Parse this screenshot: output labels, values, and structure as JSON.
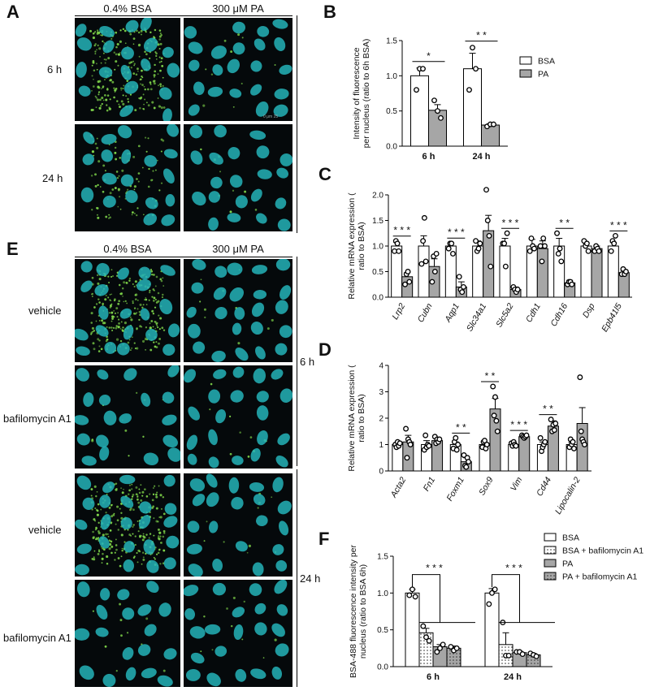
{
  "colors": {
    "nucleus": "#25b3b8",
    "puncta": "#7fd64a",
    "bg": "#05090b",
    "gray_bar": "#a6a6a6",
    "white_bar": "#ffffff"
  },
  "panelA": {
    "letter": "A",
    "col_headers": [
      "0.4% BSA",
      "300 μM PA"
    ],
    "row_labels": [
      "6 h",
      "24 h"
    ],
    "scale_bar": "0   μm   25"
  },
  "panelE": {
    "letter": "E",
    "col_headers": [
      "0.4% BSA",
      "300 μM PA"
    ],
    "row_labels": [
      "vehicle",
      "bafilomycin A1",
      "vehicle",
      "bafilomycin A1"
    ],
    "time_labels": [
      "6 h",
      "24 h"
    ]
  },
  "chart_data": [
    {
      "panel": "B",
      "type": "bar",
      "categories": [
        "6 h",
        "24 h"
      ],
      "series": [
        {
          "name": "BSA",
          "values": [
            1.0,
            1.1
          ],
          "errors": [
            0.11,
            0.22
          ],
          "points": [
            [
              0.8,
              1.1,
              1.1
            ],
            [
              0.8,
              1.4,
              1.1
            ]
          ]
        },
        {
          "name": "PA",
          "values": [
            0.51,
            0.3
          ],
          "errors": [
            0.08,
            0.02
          ],
          "points": [
            [
              0.65,
              0.5,
              0.4
            ],
            [
              0.28,
              0.31,
              0.31
            ]
          ]
        }
      ],
      "ylabel": "Intensity of fluorescence per nucleus (ratio to 6h BSA)",
      "ylim": [
        0,
        1.5
      ],
      "yticks": [
        "0.0",
        "0.5",
        "1.0",
        "1.5"
      ],
      "significance": [
        "*",
        "* *"
      ],
      "legend": "right"
    },
    {
      "panel": "C",
      "type": "bar",
      "categories": [
        "Lrp2",
        "Cubn",
        "Aqp1",
        "Slc34a1",
        "Slc5a2",
        "Cdh1",
        "Cdh16",
        "Dsp",
        "Epb41l5"
      ],
      "series": [
        {
          "name": "BSA",
          "values": [
            1.0,
            1.0,
            1.0,
            1.0,
            1.0,
            1.0,
            1.0,
            1.0,
            1.0
          ],
          "errors": [
            0.07,
            0.2,
            0.06,
            0.1,
            0.15,
            0.13,
            0.15,
            0.05,
            0.07
          ],
          "points": [
            [
              0.9,
              1.1,
              1.05,
              0.9
            ],
            [
              0.65,
              1.1,
              1.55,
              0.7
            ],
            [
              0.95,
              1.05,
              1.05,
              0.85
            ],
            [
              1.1,
              0.9,
              0.95,
              1.05
            ],
            [
              1.05,
              1.05,
              0.6,
              1.25
            ],
            [
              0.9,
              1.15,
              1.0,
              0.95
            ],
            [
              1.25,
              0.85,
              0.95,
              0.7
            ],
            [
              1.1,
              1.0,
              1.05,
              0.9
            ],
            [
              0.9,
              1.1,
              1.05,
              1.2
            ]
          ]
        },
        {
          "name": "PA",
          "values": [
            0.4,
            0.6,
            0.2,
            1.3,
            0.15,
            0.95,
            0.28,
            0.95,
            0.48
          ],
          "errors": [
            0.08,
            0.15,
            0.1,
            0.3,
            0.05,
            0.15,
            0.05,
            0.05,
            0.04
          ],
          "points": [
            [
              0.25,
              0.45,
              0.5,
              0.3
            ],
            [
              0.3,
              0.8,
              0.5,
              0.85
            ],
            [
              0.4,
              0.15,
              0.1,
              0.2
            ],
            [
              2.1,
              1.5,
              1.2,
              0.6
            ],
            [
              0.2,
              0.15,
              0.1,
              0.15
            ],
            [
              1.0,
              0.7,
              1.15,
              1.0
            ],
            [
              0.25,
              0.3,
              0.3,
              0.25
            ],
            [
              0.9,
              1.0,
              0.95,
              0.9
            ],
            [
              0.45,
              0.55,
              0.45,
              0.5
            ]
          ]
        }
      ],
      "ylabel": "Relative mRNA expression (ratio to BSA)",
      "ylim": [
        0,
        2.0
      ],
      "yticks": [
        "0.0",
        "0.5",
        "1.0",
        "1.5",
        "2.0"
      ],
      "significance": [
        "* * *",
        "",
        "* * *",
        "",
        "* * *",
        "",
        "* *",
        "",
        "* * *"
      ]
    },
    {
      "panel": "D",
      "type": "bar",
      "categories": [
        "Acta2",
        "Fn1",
        "Foxm1",
        "Sox9",
        "Vim",
        "Cd44",
        "Lipocalin-2"
      ],
      "series": [
        {
          "name": "BSA",
          "values": [
            1.0,
            1.0,
            1.0,
            1.0,
            1.0,
            1.0,
            1.0
          ],
          "errors": [
            0.08,
            0.15,
            0.1,
            0.07,
            0.05,
            0.1,
            0.08
          ],
          "points": [
            [
              1.0,
              0.9,
              1.1,
              0.95,
              1.05
            ],
            [
              0.8,
              1.35,
              0.9,
              1.0,
              0.95
            ],
            [
              0.85,
              1.1,
              1.25,
              0.8,
              1.0
            ],
            [
              0.9,
              1.1,
              1.15,
              0.85,
              1.0
            ],
            [
              1.05,
              0.95,
              1.1,
              1.0,
              0.95
            ],
            [
              1.25,
              0.75,
              0.9,
              1.0,
              1.1
            ],
            [
              0.9,
              1.2,
              1.0,
              1.1,
              0.85
            ]
          ]
        },
        {
          "name": "PA",
          "values": [
            1.1,
            1.15,
            0.35,
            2.35,
            1.3,
            1.7,
            1.8
          ],
          "errors": [
            0.25,
            0.12,
            0.15,
            0.4,
            0.05,
            0.2,
            0.6
          ],
          "points": [
            [
              1.6,
              0.5,
              1.2,
              1.1,
              1.0
            ],
            [
              1.3,
              1.05,
              1.2,
              1.1,
              1.2
            ],
            [
              0.6,
              0.2,
              0.15,
              0.5,
              0.35
            ],
            [
              3.2,
              2.1,
              2.8,
              1.9,
              1.5
            ],
            [
              1.35,
              1.3,
              1.25,
              1.3,
              1.35
            ],
            [
              1.95,
              1.5,
              1.75,
              1.55,
              1.8
            ],
            [
              3.55,
              1.5,
              1.2,
              1.1,
              1.0
            ]
          ]
        }
      ],
      "ylabel": "Relative mRNA expression (ratio to BSA)",
      "ylim": [
        0,
        4
      ],
      "yticks": [
        "0",
        "1",
        "2",
        "3",
        "4"
      ],
      "significance": [
        "",
        "",
        "* *",
        "* *",
        "* * *",
        "* *",
        ""
      ]
    },
    {
      "panel": "F",
      "type": "bar",
      "categories": [
        "6 h",
        "24 h"
      ],
      "series": [
        {
          "name": "BSA",
          "values": [
            1.0,
            1.0
          ],
          "errors": [
            0.05,
            0.06
          ],
          "points": [
            [
              0.97,
              1.05,
              0.95
            ],
            [
              0.85,
              1.0,
              1.05
            ]
          ]
        },
        {
          "name": "BSA + bafilomycin A1",
          "values": [
            0.46,
            0.3
          ],
          "errors": [
            0.06,
            0.16
          ],
          "points": [
            [
              0.55,
              0.4,
              0.35
            ],
            [
              0.6,
              0.15,
              0.15
            ]
          ]
        },
        {
          "name": "PA",
          "values": [
            0.27,
            0.19
          ],
          "errors": [
            0.03,
            0.02
          ],
          "points": [
            [
              0.2,
              0.25,
              0.3
            ],
            [
              0.2,
              0.2,
              0.17
            ]
          ]
        },
        {
          "name": "PA + bafilomycin A1",
          "values": [
            0.25,
            0.16
          ],
          "errors": [
            0.03,
            0.02
          ],
          "points": [
            [
              0.27,
              0.22,
              0.25
            ],
            [
              0.18,
              0.16,
              0.14
            ]
          ]
        }
      ],
      "ylabel": "BSA-488 fluorescence intensity per nucleus (ratio to BSA 6h)",
      "ylim": [
        0,
        1.5
      ],
      "yticks": [
        "0.0",
        "0.5",
        "1.0",
        "1.5"
      ],
      "significance": [
        "* * *",
        "* * *"
      ],
      "legend": "top-right"
    }
  ]
}
